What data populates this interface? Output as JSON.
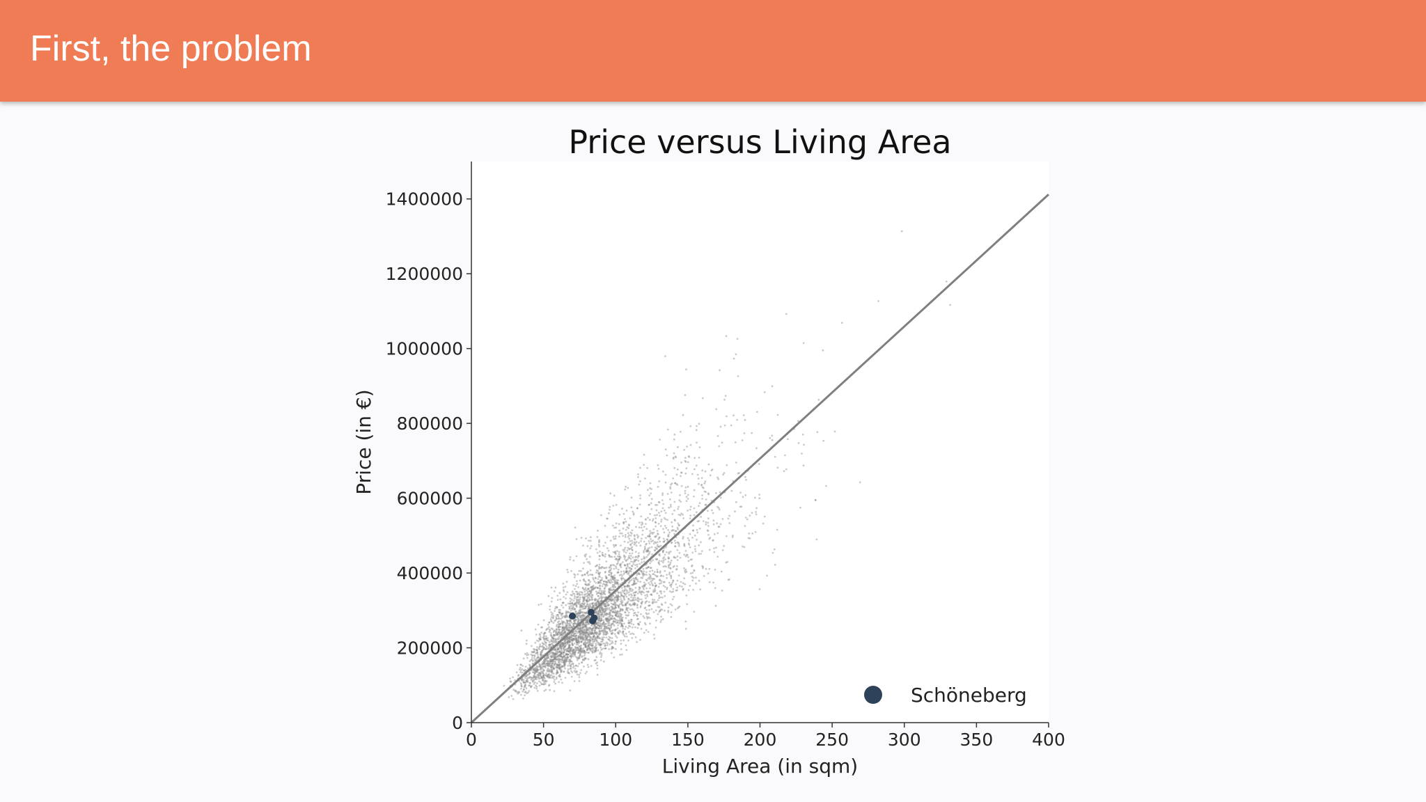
{
  "header": {
    "title": "First, the problem"
  },
  "colors": {
    "header_bg": "#f07c56",
    "scatter_points": "#8a8a8a",
    "highlight_points": "#2e4259",
    "fit_line": "#7f7f7f"
  },
  "chart_data": {
    "type": "scatter",
    "title": "Price versus Living Area",
    "xlabel": "Living Area (in sqm)",
    "ylabel": "Price (in €)",
    "xlim": [
      0,
      400
    ],
    "ylim": [
      0,
      1500000
    ],
    "x_ticks": [
      "0",
      "50",
      "100",
      "150",
      "200",
      "250",
      "300",
      "350",
      "400"
    ],
    "y_ticks": [
      "0",
      "200000",
      "400000",
      "600000",
      "800000",
      "1000000",
      "1200000",
      "1400000"
    ],
    "x_tick_values": [
      0,
      50,
      100,
      150,
      200,
      250,
      300,
      350,
      400
    ],
    "y_tick_values": [
      0,
      200000,
      400000,
      600000,
      800000,
      1000000,
      1200000,
      1400000
    ],
    "grid": false,
    "legend": {
      "placement": "bottom-right",
      "entries": [
        "Schöneberg"
      ]
    },
    "regression_line": {
      "x": [
        0,
        400
      ],
      "y": [
        0,
        1412000
      ]
    },
    "series": [
      {
        "name": "Schöneberg",
        "color": "#2e4259",
        "points": [
          {
            "x": 70,
            "y": 285000
          },
          {
            "x": 83,
            "y": 295000
          },
          {
            "x": 84,
            "y": 272000
          },
          {
            "x": 85,
            "y": 280000
          }
        ]
      }
    ],
    "background_points_note_hidden": true
  }
}
